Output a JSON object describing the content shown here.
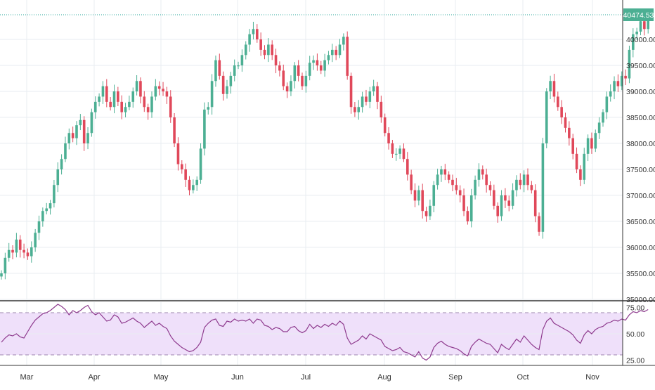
{
  "colors": {
    "up": "#4caf93",
    "down": "#e0485a",
    "grid": "#e9edf2",
    "axis_text": "#333333",
    "price_line": "#26a69a",
    "price_label_bg": "#4caf93",
    "rsi_line": "#8e3a8e",
    "rsi_band": "#efe0fa",
    "rsi_band_line": "#9e86ad",
    "divider": "#333333"
  },
  "x_axis": {
    "labels": [
      "Mar",
      "Apr",
      "May",
      "Jun",
      "Jul",
      "Aug",
      "Sep",
      "Oct",
      "Nov"
    ]
  },
  "chart_data": [
    {
      "type": "candlestick",
      "y_ticks": [
        35000,
        35500,
        36000,
        36500,
        37000,
        37500,
        38000,
        38500,
        39000,
        39500,
        40000
      ],
      "y_tick_labels": [
        "35000.00",
        "35500.00",
        "36000.00",
        "36500.00",
        "37000.00",
        "37500.00",
        "38000.00",
        "38500.00",
        "39000.00",
        "39500.00",
        "40000.00"
      ],
      "ylim": [
        35000,
        40650
      ],
      "last_price": 40474.53,
      "last_price_label": "40474.53",
      "closes": [
        35500,
        35800,
        35950,
        35900,
        36150,
        35950,
        35900,
        35830,
        36000,
        36280,
        36500,
        36700,
        36750,
        36850,
        37200,
        37500,
        37700,
        38000,
        38200,
        38100,
        38350,
        38450,
        38000,
        38200,
        38600,
        38800,
        38900,
        39100,
        38800,
        38700,
        39000,
        38800,
        38600,
        38700,
        38800,
        39000,
        39200,
        38900,
        38700,
        38600,
        38900,
        39100,
        39050,
        39000,
        38900,
        38500,
        38000,
        37600,
        37500,
        37300,
        37100,
        37200,
        37300,
        37900,
        38650,
        38700,
        39200,
        39600,
        39300,
        38950,
        39100,
        39300,
        39500,
        39500,
        39700,
        39900,
        40100,
        40200,
        40000,
        39800,
        39700,
        39900,
        39700,
        39500,
        39400,
        39100,
        39000,
        39200,
        39500,
        39300,
        39100,
        39300,
        39550,
        39600,
        39500,
        39400,
        39600,
        39700,
        39800,
        39700,
        39900,
        40050,
        39300,
        38700,
        38600,
        38700,
        38900,
        38800,
        39000,
        39100,
        38800,
        38500,
        38200,
        38000,
        37800,
        37800,
        37900,
        37700,
        37400,
        37100,
        36900,
        37100,
        36700,
        36600,
        36800,
        37200,
        37400,
        37500,
        37400,
        37300,
        37200,
        37100,
        37000,
        36700,
        36500,
        37000,
        37300,
        37500,
        37400,
        37200,
        37100,
        36800,
        36600,
        37000,
        36900,
        36800,
        37100,
        37300,
        37200,
        37400,
        37200,
        37100,
        36600,
        36300,
        38000,
        39000,
        39200,
        38900,
        38700,
        38500,
        38300,
        38100,
        37800,
        37500,
        37300,
        37800,
        38100,
        37900,
        38200,
        38400,
        38600,
        38900,
        39000,
        39200,
        39100,
        39300,
        39250,
        39800,
        40100,
        40150,
        40350,
        40200,
        40474
      ]
    },
    {
      "type": "line",
      "y_ticks": [
        25,
        50,
        75
      ],
      "y_tick_labels": [
        "25.00",
        "50.00",
        "75.00"
      ],
      "ylim": [
        20,
        80
      ],
      "band": [
        30,
        70
      ],
      "values": [
        42,
        46,
        49,
        48,
        50,
        47,
        46,
        52,
        58,
        63,
        66,
        69,
        70,
        72,
        75,
        78,
        76,
        73,
        68,
        72,
        70,
        72,
        75,
        77,
        71,
        68,
        70,
        66,
        62,
        63,
        68,
        66,
        60,
        61,
        63,
        65,
        62,
        60,
        56,
        59,
        62,
        58,
        60,
        57,
        55,
        48,
        43,
        40,
        37,
        35,
        33,
        34,
        37,
        42,
        56,
        60,
        63,
        64,
        58,
        57,
        62,
        61,
        64,
        62,
        63,
        62,
        64,
        60,
        64,
        63,
        58,
        57,
        54,
        56,
        55,
        52,
        52,
        56,
        57,
        53,
        51,
        53,
        59,
        55,
        58,
        56,
        59,
        57,
        60,
        58,
        62,
        59,
        46,
        40,
        42,
        44,
        48,
        45,
        50,
        48,
        46,
        44,
        38,
        36,
        34,
        35,
        37,
        33,
        32,
        30,
        28,
        33,
        27,
        25,
        28,
        37,
        41,
        43,
        40,
        38,
        37,
        36,
        34,
        31,
        29,
        38,
        42,
        45,
        43,
        41,
        40,
        36,
        32,
        40,
        37,
        35,
        40,
        45,
        42,
        48,
        44,
        40,
        37,
        35,
        54,
        62,
        65,
        60,
        58,
        56,
        54,
        52,
        49,
        44,
        41,
        49,
        53,
        50,
        54,
        56,
        57,
        60,
        61,
        63,
        62,
        64,
        63,
        68,
        71,
        70,
        72,
        71,
        73
      ]
    }
  ]
}
